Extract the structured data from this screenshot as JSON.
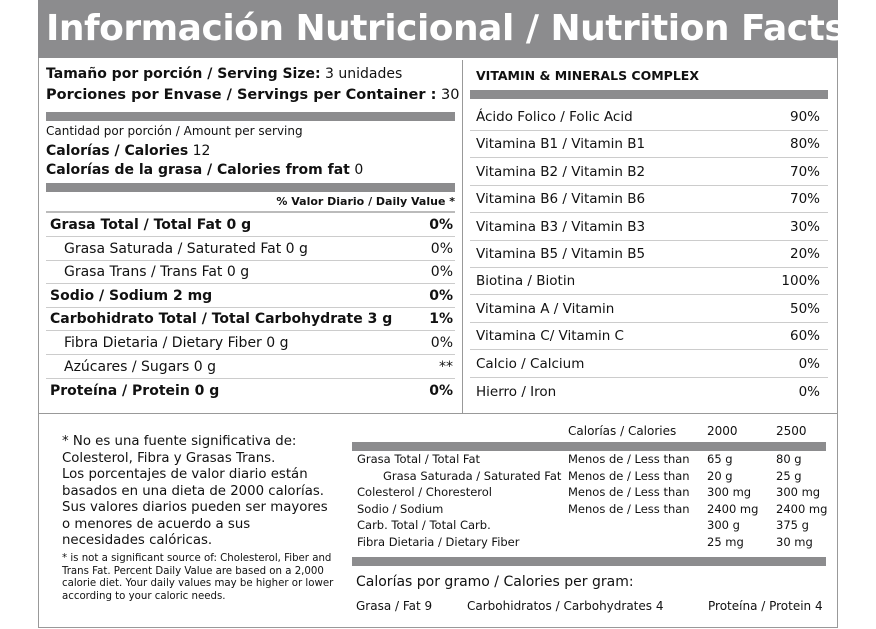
{
  "title": "Información Nutricional / Nutrition Facts",
  "serving": {
    "size_label": "Tamaño por porción / Serving Size:",
    "size_value": "3 unidades",
    "per_container_label": "Porciones por Envase / Servings per Container :",
    "per_container_value": "30"
  },
  "amount_per_serving": "Cantidad por porción / Amount per serving",
  "calories": {
    "label": "Calorías / Calories",
    "value": "12",
    "fat_label": "Calorías de la grasa / Calories  from fat",
    "fat_value": "0"
  },
  "daily_value_header": "% Valor Diario / Daily Value *",
  "nutrients": [
    {
      "label": "Grasa Total / Total Fat  0 g",
      "pct": "0%",
      "bold": true
    },
    {
      "label": "Grasa Saturada / Saturated Fat  0 g",
      "pct": "0%",
      "bold": false
    },
    {
      "label": "Grasa Trans / Trans Fat  0 g",
      "pct": "0%",
      "bold": false
    },
    {
      "label": "Sodio / Sodium  2 mg",
      "pct": "0%",
      "bold": true
    },
    {
      "label": "Carbohidrato Total / Total Carbohydrate  3 g",
      "pct": "1%",
      "bold": true
    },
    {
      "label": "Fibra Dietaria / Dietary Fiber  0 g",
      "pct": "0%",
      "bold": false
    },
    {
      "label": "Azúcares / Sugars  0 g",
      "pct": "**",
      "bold": false
    },
    {
      "label": "Proteína / Protein  0 g",
      "pct": "0%",
      "bold": true
    }
  ],
  "vitamins": {
    "title": "VITAMIN & MINERALS COMPLEX",
    "items": [
      {
        "label": "Ácido Folico / Folic Acid",
        "pct": "90%"
      },
      {
        "label": "Vitamina B1  / Vitamin B1",
        "pct": "80%"
      },
      {
        "label": "Vitamina B2 / Vitamin B2",
        "pct": "70%"
      },
      {
        "label": "Vitamina B6  / Vitamin B6",
        "pct": "70%"
      },
      {
        "label": "Vitamina B3 / Vitamin B3",
        "pct": "30%"
      },
      {
        "label": "Vitamina B5 / Vitamin B5",
        "pct": "20%"
      },
      {
        "label": "Biotina / Biotin",
        "pct": "100%"
      },
      {
        "label": "Vitamina A / Vitamin",
        "pct": "50%"
      },
      {
        "label": "Vitamina C/ Vitamin C",
        "pct": "60%"
      },
      {
        "label": "Calcio / Calcium",
        "pct": "0%"
      },
      {
        "label": "Hierro / Iron",
        "pct": "0%"
      }
    ]
  },
  "footnote_es": [
    "* No es una fuente significativa de:",
    "Colesterol, Fibra y Grasas Trans.",
    "Los porcentajes de valor diario están",
    "basados en una dieta de 2000 calorías.",
    "Sus valores diarios pueden ser mayores",
    "o menores de acuerdo a sus",
    "necesidades calóricas."
  ],
  "footnote_en": [
    "* is not a significant source of: Cholesterol, Fiber and",
    "Trans Fat. Percent Daily Value are based on a 2,000",
    "calorie diet. Your daily values may be higher or lower",
    "according to your caloric needs."
  ],
  "reference": {
    "header": {
      "calories_label": "Calorías / Calories",
      "c1": "2000",
      "c2": "2500"
    },
    "rows": [
      {
        "label": "Grasa Total / Total Fat",
        "qual": "Menos de / Less than",
        "v1": "65 g",
        "v2": "80 g"
      },
      {
        "label": "   Grasa Saturada / Saturated Fat",
        "qual": "Menos de / Less than",
        "v1": "20 g",
        "v2": "25 g"
      },
      {
        "label": "Colesterol / Choresterol",
        "qual": "Menos de / Less than",
        "v1": "300 mg",
        "v2": "300 mg"
      },
      {
        "label": "Sodio / Sodium",
        "qual": "Menos de / Less than",
        "v1": "2400 mg",
        "v2": "2400 mg"
      },
      {
        "label": "Carb. Total / Total Carb.",
        "qual": "",
        "v1": "300 g",
        "v2": "375 g"
      },
      {
        "label": "Fibra Dietaria / Dietary Fiber",
        "qual": "",
        "v1": "25 mg",
        "v2": "30 mg"
      }
    ]
  },
  "calories_per_gram": {
    "title": "Calorías por gramo / Calories per gram:",
    "fat": "Grasa / Fat  9",
    "carbs": "Carbohidratos / Carbohydrates 4",
    "protein": "Proteína  / Protein 4"
  }
}
